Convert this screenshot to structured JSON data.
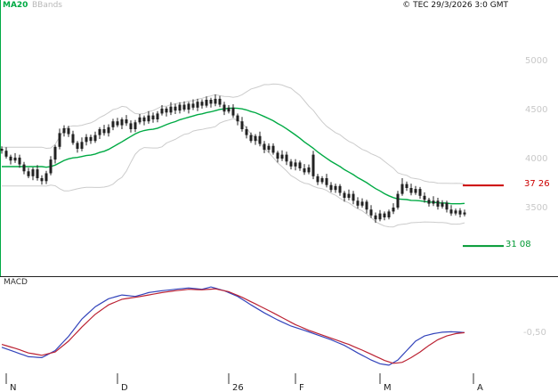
{
  "header": {
    "ma20_label": "MA20",
    "bbands_label": "BBands",
    "copyright": "© TEC 29/3/2026 3:0 GMT"
  },
  "colors": {
    "ma20": "#00aa44",
    "bbands": "#cccccc",
    "candle": "#222222",
    "macd_line": "#3344bb",
    "signal_line": "#bb2233",
    "axis_text": "#c8c8c8",
    "month_text": "#222222",
    "divider": "#222222"
  },
  "price_axis": {
    "ticks": [
      5000,
      4500,
      4000,
      3500
    ]
  },
  "levels": [
    {
      "name": "resistance",
      "value": 3726,
      "label": "37 26",
      "color": "#cc0000"
    },
    {
      "name": "support",
      "value": 3108,
      "label": "31 08",
      "color": "#009933"
    }
  ],
  "macd_panel": {
    "label": "MACD",
    "axis_label": "-0,50",
    "axis_value": -0.5
  },
  "x_axis": {
    "labels": [
      {
        "label": "N",
        "index": 1
      },
      {
        "label": "D",
        "index": 26
      },
      {
        "label": "26",
        "index": 51
      },
      {
        "label": "F",
        "index": 66
      },
      {
        "label": "M",
        "index": 85
      },
      {
        "label": "A",
        "index": 106
      }
    ]
  },
  "chart_data": {
    "type": "candlestick",
    "indicators": [
      "MA20",
      "BollingerBands(20,2)",
      "MACD(12,26,9)"
    ],
    "ylim": [
      3100,
      5100
    ],
    "grid": false,
    "candles": [
      [
        4100,
        4125,
        4050,
        4080
      ],
      [
        4080,
        4115,
        4000,
        4020
      ],
      [
        4020,
        4040,
        3940,
        3980
      ],
      [
        3980,
        4055,
        3955,
        4010
      ],
      [
        4010,
        4040,
        3905,
        3940
      ],
      [
        3940,
        3965,
        3840,
        3870
      ],
      [
        3870,
        3905,
        3800,
        3820
      ],
      [
        3820,
        3910,
        3780,
        3890
      ],
      [
        3890,
        3935,
        3775,
        3800
      ],
      [
        3800,
        3830,
        3735,
        3770
      ],
      [
        3770,
        3875,
        3740,
        3850
      ],
      [
        3850,
        4025,
        3830,
        3990
      ],
      [
        3990,
        4140,
        3950,
        4120
      ],
      [
        4120,
        4305,
        4095,
        4260
      ],
      [
        4260,
        4340,
        4225,
        4310
      ],
      [
        4310,
        4335,
        4220,
        4250
      ],
      [
        4250,
        4285,
        4140,
        4160
      ],
      [
        4160,
        4180,
        4060,
        4100
      ],
      [
        4100,
        4215,
        4075,
        4170
      ],
      [
        4170,
        4250,
        4135,
        4220
      ],
      [
        4220,
        4245,
        4150,
        4180
      ],
      [
        4180,
        4275,
        4160,
        4240
      ],
      [
        4240,
        4320,
        4200,
        4300
      ],
      [
        4300,
        4345,
        4235,
        4260
      ],
      [
        4260,
        4350,
        4225,
        4320
      ],
      [
        4320,
        4405,
        4290,
        4380
      ],
      [
        4380,
        4415,
        4320,
        4340
      ],
      [
        4340,
        4420,
        4300,
        4400
      ],
      [
        4400,
        4445,
        4335,
        4360
      ],
      [
        4360,
        4390,
        4265,
        4300
      ],
      [
        4300,
        4395,
        4270,
        4370
      ],
      [
        4370,
        4455,
        4350,
        4420
      ],
      [
        4420,
        4440,
        4340,
        4380
      ],
      [
        4380,
        4485,
        4355,
        4440
      ],
      [
        4440,
        4470,
        4365,
        4400
      ],
      [
        4400,
        4485,
        4370,
        4460
      ],
      [
        4460,
        4545,
        4440,
        4510
      ],
      [
        4510,
        4530,
        4430,
        4470
      ],
      [
        4470,
        4575,
        4445,
        4530
      ],
      [
        4530,
        4560,
        4455,
        4490
      ],
      [
        4490,
        4575,
        4460,
        4550
      ],
      [
        4550,
        4585,
        4480,
        4500
      ],
      [
        4500,
        4580,
        4460,
        4560
      ],
      [
        4560,
        4605,
        4495,
        4520
      ],
      [
        4520,
        4610,
        4485,
        4580
      ],
      [
        4580,
        4605,
        4510,
        4540
      ],
      [
        4540,
        4635,
        4520,
        4600
      ],
      [
        4600,
        4620,
        4520,
        4560
      ],
      [
        4560,
        4655,
        4535,
        4610
      ],
      [
        4610,
        4640,
        4525,
        4550
      ],
      [
        4550,
        4580,
        4445,
        4480
      ],
      [
        4480,
        4545,
        4460,
        4520
      ],
      [
        4520,
        4555,
        4415,
        4440
      ],
      [
        4440,
        4460,
        4340,
        4380
      ],
      [
        4380,
        4425,
        4275,
        4300
      ],
      [
        4300,
        4330,
        4205,
        4240
      ],
      [
        4240,
        4265,
        4160,
        4180
      ],
      [
        4180,
        4250,
        4140,
        4230
      ],
      [
        4230,
        4275,
        4125,
        4150
      ],
      [
        4150,
        4180,
        4055,
        4090
      ],
      [
        4090,
        4155,
        4060,
        4130
      ],
      [
        4130,
        4155,
        4040,
        4060
      ],
      [
        4060,
        4080,
        3960,
        4000
      ],
      [
        4000,
        4085,
        3975,
        4040
      ],
      [
        4040,
        4070,
        3935,
        3970
      ],
      [
        3970,
        3995,
        3890,
        3920
      ],
      [
        3920,
        3995,
        3880,
        3960
      ],
      [
        3960,
        3980,
        3875,
        3900
      ],
      [
        3900,
        3945,
        3835,
        3860
      ],
      [
        3860,
        3940,
        3840,
        3910
      ],
      [
        4040,
        4080,
        3790,
        3820
      ],
      [
        3820,
        3845,
        3730,
        3760
      ],
      [
        3760,
        3820,
        3740,
        3800
      ],
      [
        3800,
        3845,
        3705,
        3730
      ],
      [
        3730,
        3760,
        3655,
        3680
      ],
      [
        3680,
        3745,
        3650,
        3720
      ],
      [
        3720,
        3740,
        3620,
        3650
      ],
      [
        3650,
        3670,
        3560,
        3600
      ],
      [
        3600,
        3685,
        3575,
        3640
      ],
      [
        3640,
        3670,
        3535,
        3570
      ],
      [
        3570,
        3605,
        3490,
        3520
      ],
      [
        3520,
        3595,
        3500,
        3560
      ],
      [
        3560,
        3580,
        3440,
        3480
      ],
      [
        3480,
        3525,
        3395,
        3420
      ],
      [
        3420,
        3450,
        3345,
        3380
      ],
      [
        3380,
        3475,
        3360,
        3440
      ],
      [
        3440,
        3460,
        3370,
        3400
      ],
      [
        3400,
        3480,
        3380,
        3460
      ],
      [
        3460,
        3545,
        3435,
        3500
      ],
      [
        3500,
        3670,
        3480,
        3640
      ],
      [
        3640,
        3800,
        3620,
        3740
      ],
      [
        3740,
        3765,
        3670,
        3700
      ],
      [
        3700,
        3745,
        3625,
        3650
      ],
      [
        3650,
        3720,
        3630,
        3690
      ],
      [
        3690,
        3710,
        3590,
        3620
      ],
      [
        3620,
        3655,
        3550,
        3580
      ],
      [
        3580,
        3600,
        3510,
        3540
      ],
      [
        3540,
        3615,
        3515,
        3570
      ],
      [
        3570,
        3600,
        3480,
        3510
      ],
      [
        3510,
        3575,
        3490,
        3550
      ],
      [
        3550,
        3570,
        3450,
        3480
      ],
      [
        3480,
        3525,
        3415,
        3440
      ],
      [
        3440,
        3490,
        3420,
        3470
      ],
      [
        3470,
        3495,
        3400,
        3430
      ],
      [
        3430,
        3480,
        3410,
        3450
      ]
    ],
    "macd": {
      "line": [
        [
          0,
          -0.78
        ],
        [
          3,
          -0.88
        ],
        [
          6,
          -0.98
        ],
        [
          9,
          -1.0
        ],
        [
          12,
          -0.85
        ],
        [
          15,
          -0.55
        ],
        [
          18,
          -0.18
        ],
        [
          21,
          0.08
        ],
        [
          24,
          0.25
        ],
        [
          27,
          0.33
        ],
        [
          30,
          0.3
        ],
        [
          33,
          0.38
        ],
        [
          36,
          0.42
        ],
        [
          39,
          0.45
        ],
        [
          42,
          0.48
        ],
        [
          45,
          0.45
        ],
        [
          47,
          0.5
        ],
        [
          50,
          0.42
        ],
        [
          53,
          0.3
        ],
        [
          56,
          0.12
        ],
        [
          59,
          -0.05
        ],
        [
          62,
          -0.2
        ],
        [
          65,
          -0.33
        ],
        [
          68,
          -0.42
        ],
        [
          71,
          -0.52
        ],
        [
          74,
          -0.62
        ],
        [
          77,
          -0.74
        ],
        [
          80,
          -0.9
        ],
        [
          83,
          -1.05
        ],
        [
          85,
          -1.13
        ],
        [
          87,
          -1.16
        ],
        [
          89,
          -1.05
        ],
        [
          91,
          -0.85
        ],
        [
          93,
          -0.65
        ],
        [
          95,
          -0.54
        ],
        [
          97,
          -0.49
        ],
        [
          99,
          -0.46
        ],
        [
          101,
          -0.45
        ],
        [
          103,
          -0.46
        ],
        [
          104,
          -0.47
        ]
      ],
      "signal": [
        [
          0,
          -0.72
        ],
        [
          3,
          -0.8
        ],
        [
          6,
          -0.9
        ],
        [
          9,
          -0.95
        ],
        [
          12,
          -0.88
        ],
        [
          15,
          -0.65
        ],
        [
          18,
          -0.35
        ],
        [
          21,
          -0.08
        ],
        [
          24,
          0.12
        ],
        [
          27,
          0.24
        ],
        [
          30,
          0.28
        ],
        [
          33,
          0.33
        ],
        [
          36,
          0.38
        ],
        [
          39,
          0.42
        ],
        [
          42,
          0.45
        ],
        [
          45,
          0.44
        ],
        [
          48,
          0.46
        ],
        [
          51,
          0.4
        ],
        [
          54,
          0.28
        ],
        [
          57,
          0.14
        ],
        [
          60,
          0.0
        ],
        [
          63,
          -0.15
        ],
        [
          66,
          -0.3
        ],
        [
          69,
          -0.42
        ],
        [
          72,
          -0.52
        ],
        [
          75,
          -0.62
        ],
        [
          78,
          -0.72
        ],
        [
          81,
          -0.84
        ],
        [
          84,
          -0.97
        ],
        [
          86,
          -1.06
        ],
        [
          88,
          -1.12
        ],
        [
          90,
          -1.1
        ],
        [
          92,
          -1.0
        ],
        [
          94,
          -0.88
        ],
        [
          96,
          -0.74
        ],
        [
          98,
          -0.62
        ],
        [
          100,
          -0.54
        ],
        [
          102,
          -0.49
        ],
        [
          104,
          -0.47
        ]
      ]
    }
  }
}
